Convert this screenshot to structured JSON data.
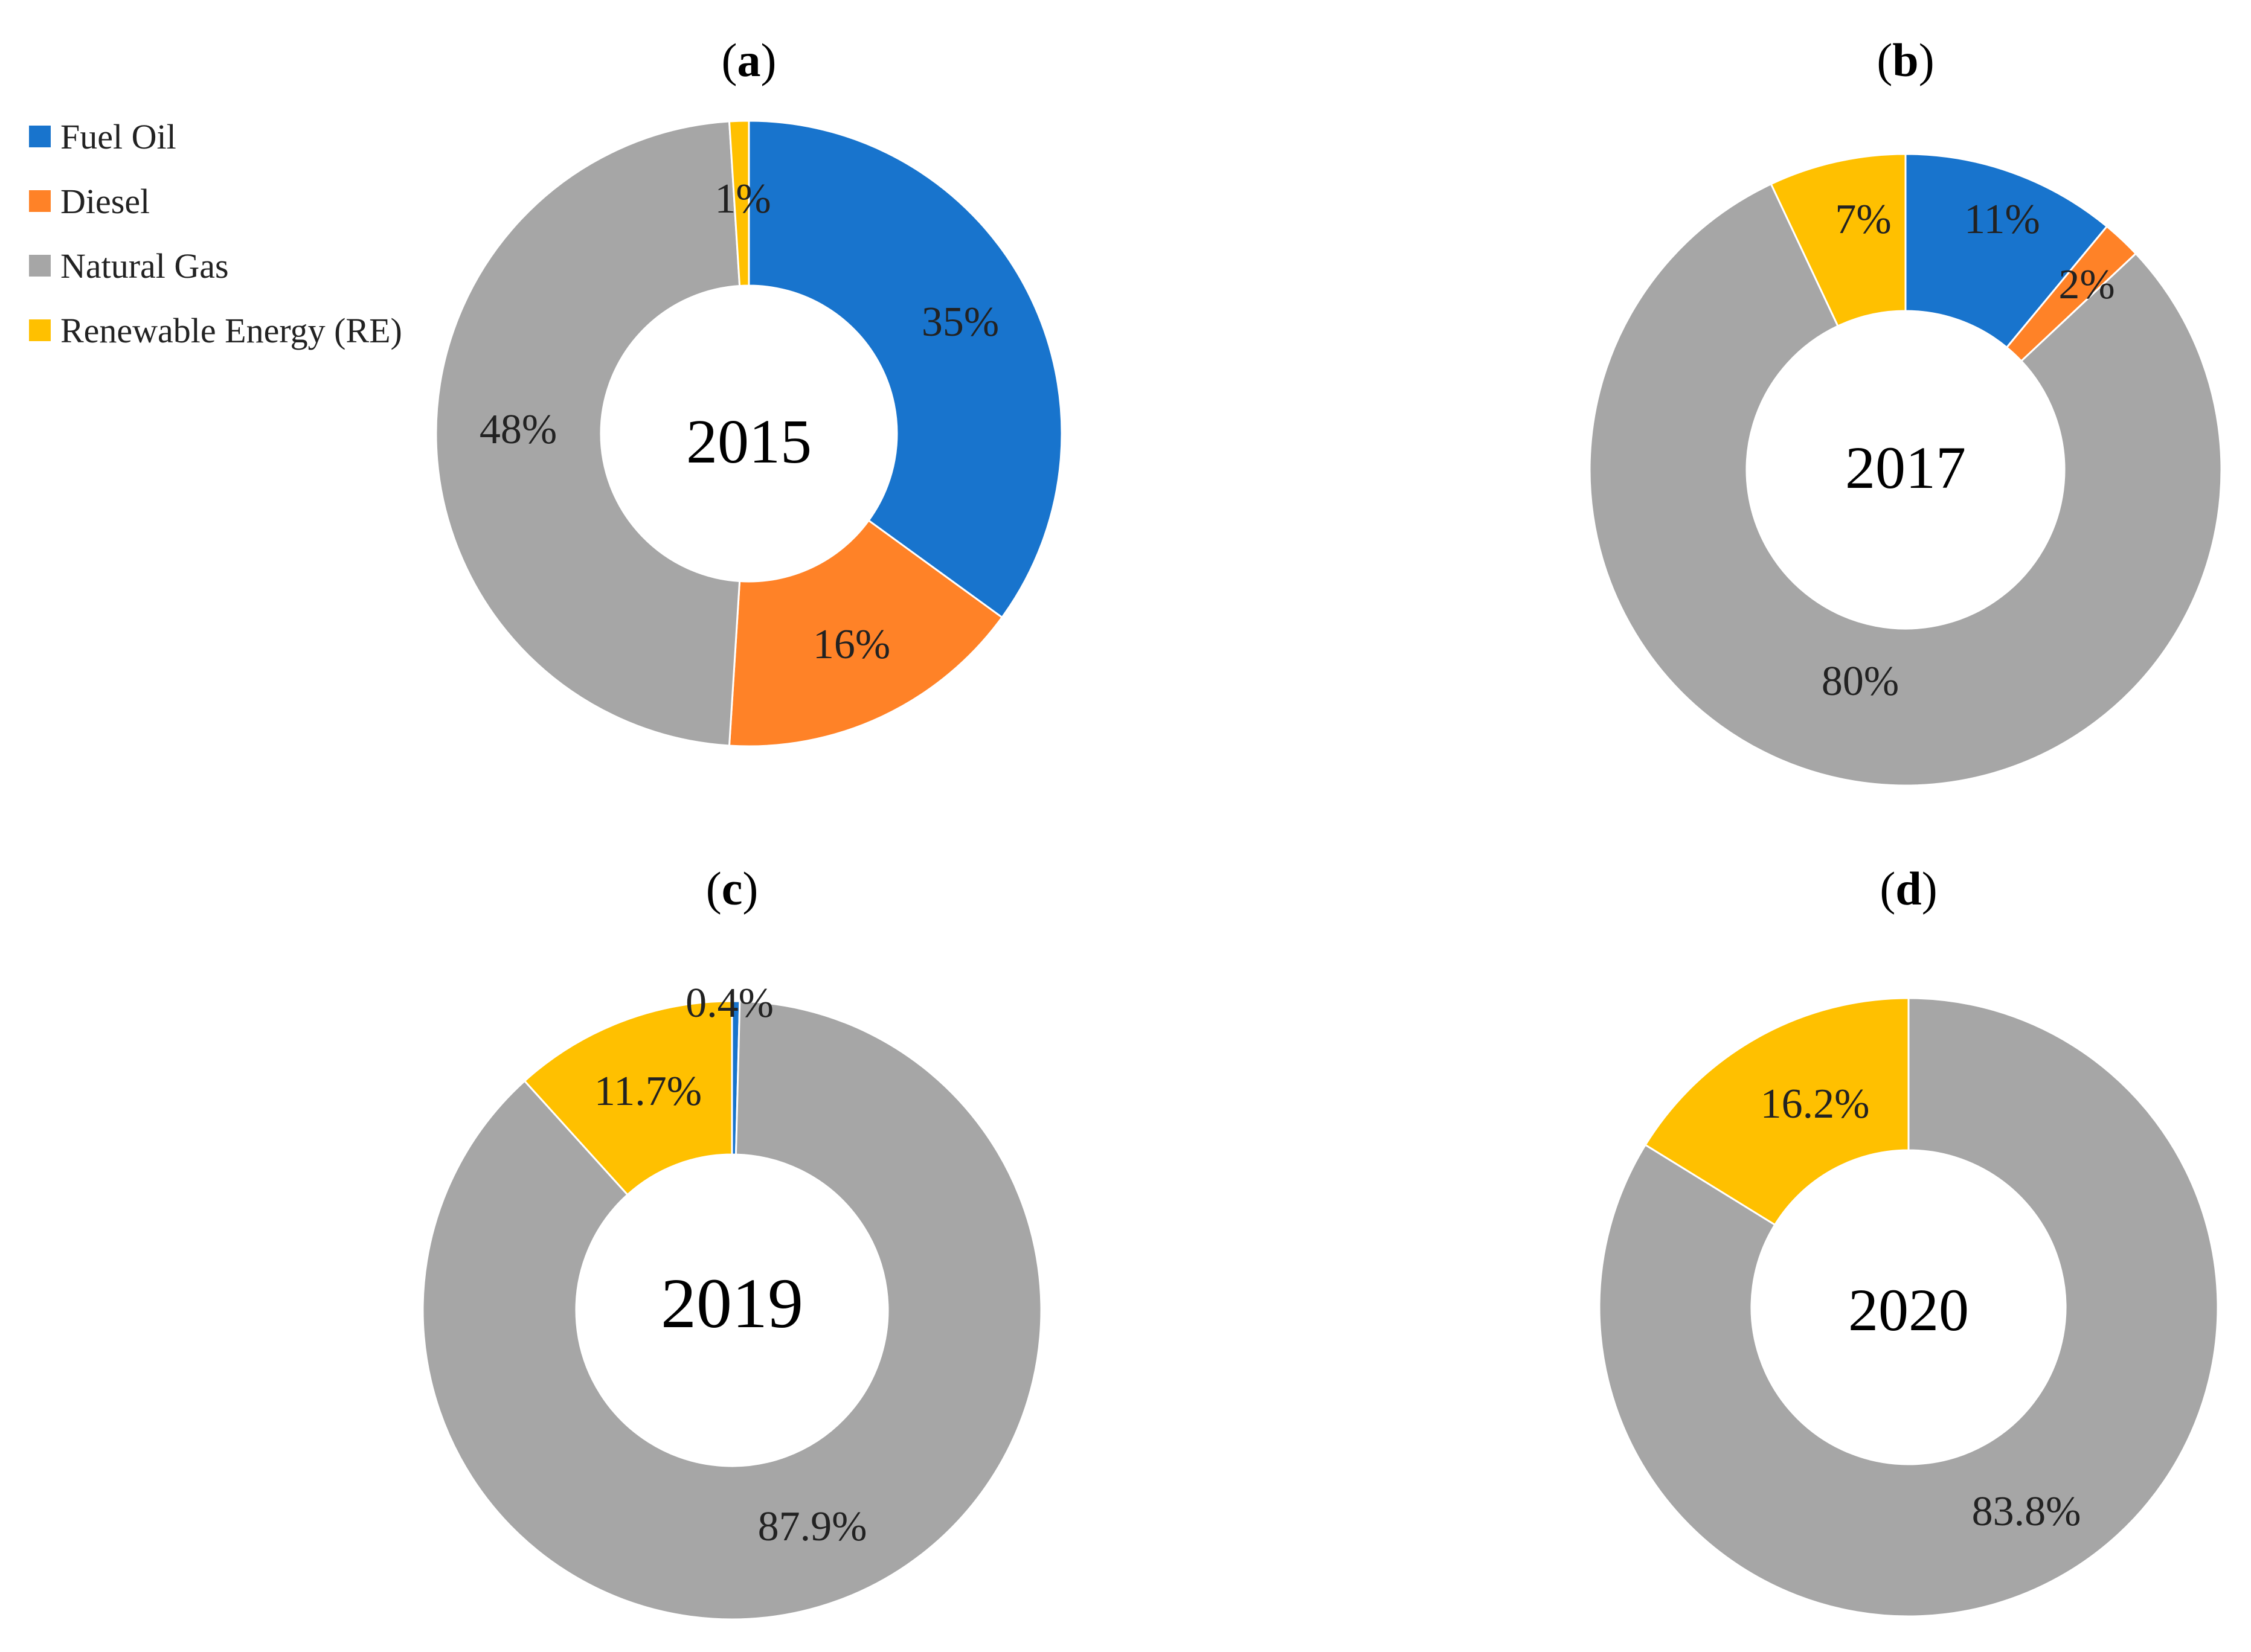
{
  "chart_data": [
    {
      "type": "donut",
      "panel": "a",
      "center_label": "2015",
      "start_angle_deg": 0,
      "slices": [
        {
          "name": "Fuel Oil",
          "value": 35,
          "label": "35%"
        },
        {
          "name": "Diesel",
          "value": 16,
          "label": "16%"
        },
        {
          "name": "Natural Gas",
          "value": 48,
          "label": "48%"
        },
        {
          "name": "Renewable Energy (RE)",
          "value": 1,
          "label": "1%"
        }
      ]
    },
    {
      "type": "donut",
      "panel": "b",
      "center_label": "2017",
      "start_angle_deg": 0,
      "slices": [
        {
          "name": "Fuel Oil",
          "value": 11,
          "label": "11%"
        },
        {
          "name": "Diesel",
          "value": 2,
          "label": "2%"
        },
        {
          "name": "Natural Gas",
          "value": 80,
          "label": "80%"
        },
        {
          "name": "Renewable Energy (RE)",
          "value": 7,
          "label": "7%"
        }
      ]
    },
    {
      "type": "donut",
      "panel": "c",
      "center_label": "2019",
      "start_angle_deg": 0,
      "slices": [
        {
          "name": "Fuel Oil",
          "value": 0.4,
          "label": "0.4%"
        },
        {
          "name": "Natural Gas",
          "value": 87.9,
          "label": "87.9%"
        },
        {
          "name": "Renewable Energy (RE)",
          "value": 11.7,
          "label": "11.7%"
        }
      ]
    },
    {
      "type": "donut",
      "panel": "d",
      "center_label": "2020",
      "start_angle_deg": 0,
      "slices": [
        {
          "name": "Natural Gas",
          "value": 83.8,
          "label": "83.8%"
        },
        {
          "name": "Renewable Energy (RE)",
          "value": 16.2,
          "label": "16.2%"
        }
      ]
    }
  ],
  "legend": {
    "position": "top-left",
    "items": [
      {
        "name": "Fuel Oil",
        "color": "#1874CD"
      },
      {
        "name": "Diesel",
        "color": "#FF8227"
      },
      {
        "name": "Natural Gas",
        "color": "#A6A6A6"
      },
      {
        "name": "Renewable Energy (RE)",
        "color": "#FFC000"
      }
    ]
  }
}
